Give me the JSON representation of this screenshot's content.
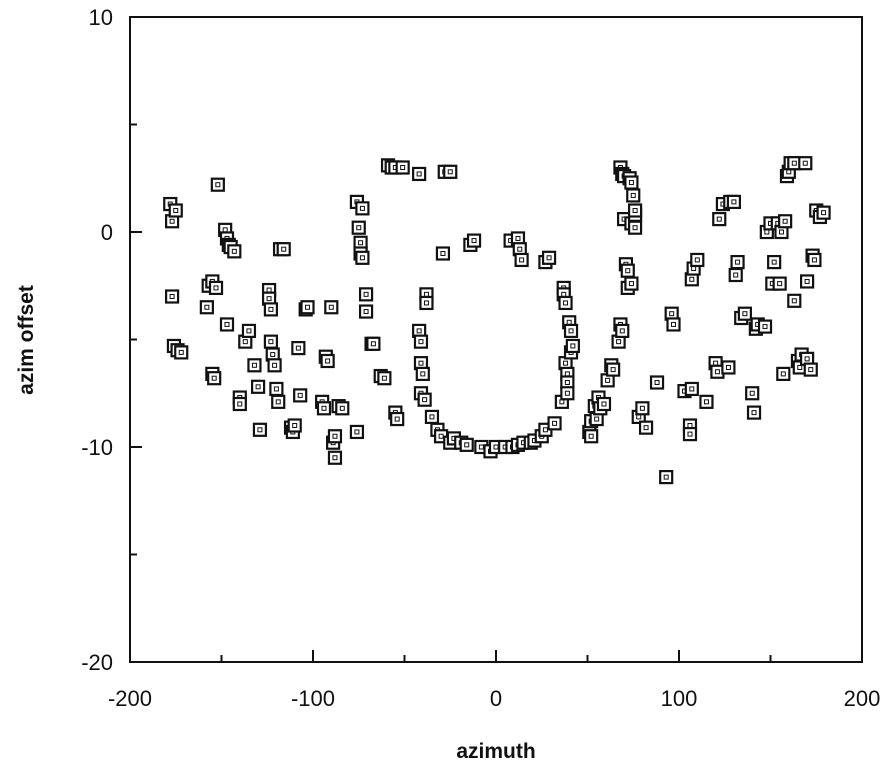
{
  "chart_data": {
    "type": "scatter",
    "xlabel": "azimuth",
    "ylabel": "azim offset",
    "xlim": [
      -200,
      200
    ],
    "ylim": [
      -20,
      10
    ],
    "x_ticks": [
      -200,
      -100,
      0,
      100,
      200
    ],
    "x_tick_labels": [
      "-200",
      "-100",
      "0",
      "100",
      "200"
    ],
    "y_ticks": [
      -20,
      -10,
      0,
      10
    ],
    "y_tick_labels": [
      "-20",
      "-10",
      "0",
      "10"
    ],
    "grid": false,
    "marker": "hollow-square",
    "points": [
      [
        -178,
        1.3
      ],
      [
        -177,
        0.5
      ],
      [
        -175,
        1.0
      ],
      [
        -177,
        -3.0
      ],
      [
        -176,
        -5.3
      ],
      [
        -174,
        -5.5
      ],
      [
        -172,
        -5.6
      ],
      [
        -158,
        -3.5
      ],
      [
        -157,
        -2.5
      ],
      [
        -155,
        -2.3
      ],
      [
        -153,
        -2.6
      ],
      [
        -152,
        2.2
      ],
      [
        -155,
        -6.6
      ],
      [
        -154,
        -6.8
      ],
      [
        -148,
        0.1
      ],
      [
        -147,
        -0.3
      ],
      [
        -146,
        -0.6
      ],
      [
        -145,
        -0.7
      ],
      [
        -143,
        -0.9
      ],
      [
        -147,
        -4.3
      ],
      [
        -140,
        -7.7
      ],
      [
        -140,
        -8.0
      ],
      [
        -137,
        -5.1
      ],
      [
        -135,
        -4.6
      ],
      [
        -132,
        -6.2
      ],
      [
        -130,
        -7.2
      ],
      [
        -129,
        -9.2
      ],
      [
        -124,
        -2.7
      ],
      [
        -124,
        -3.1
      ],
      [
        -123,
        -3.6
      ],
      [
        -123,
        -5.1
      ],
      [
        -122,
        -5.7
      ],
      [
        -121,
        -6.2
      ],
      [
        -120,
        -7.3
      ],
      [
        -119,
        -7.9
      ],
      [
        -118,
        -0.8
      ],
      [
        -116,
        -0.8
      ],
      [
        -112,
        -9.1
      ],
      [
        -111,
        -9.3
      ],
      [
        -110,
        -9.0
      ],
      [
        -108,
        -5.4
      ],
      [
        -107,
        -7.6
      ],
      [
        -104,
        -3.6
      ],
      [
        -103,
        -3.5
      ],
      [
        -95,
        -7.9
      ],
      [
        -94,
        -8.2
      ],
      [
        -93,
        -5.8
      ],
      [
        -92,
        -6.0
      ],
      [
        -90,
        -3.5
      ],
      [
        -89,
        -9.8
      ],
      [
        -88,
        -10.5
      ],
      [
        -88,
        -9.5
      ],
      [
        -86,
        -8.1
      ],
      [
        -84,
        -8.2
      ],
      [
        -76,
        1.4
      ],
      [
        -75,
        0.2
      ],
      [
        -74,
        -0.5
      ],
      [
        -74,
        -1.0
      ],
      [
        -73,
        -1.2
      ],
      [
        -73,
        1.1
      ],
      [
        -76,
        -9.3
      ],
      [
        -71,
        -2.9
      ],
      [
        -71,
        -3.7
      ],
      [
        -68,
        -5.2
      ],
      [
        -67,
        -5.2
      ],
      [
        -63,
        -6.7
      ],
      [
        -61,
        -6.8
      ],
      [
        -59,
        3.1
      ],
      [
        -57,
        3.0
      ],
      [
        -55,
        3.0
      ],
      [
        -51,
        3.0
      ],
      [
        -55,
        -8.4
      ],
      [
        -54,
        -8.7
      ],
      [
        -42,
        2.7
      ],
      [
        -42,
        -4.6
      ],
      [
        -41,
        -5.1
      ],
      [
        -41,
        -6.1
      ],
      [
        -40,
        -6.6
      ],
      [
        -41,
        -7.5
      ],
      [
        -39,
        -7.8
      ],
      [
        -38,
        -2.9
      ],
      [
        -38,
        -3.3
      ],
      [
        -35,
        -8.6
      ],
      [
        -32,
        -9.2
      ],
      [
        -30,
        -9.5
      ],
      [
        -29,
        -1.0
      ],
      [
        -28,
        2.8
      ],
      [
        -25,
        2.8
      ],
      [
        -25,
        -9.8
      ],
      [
        -23,
        -9.6
      ],
      [
        -19,
        -9.8
      ],
      [
        -16,
        -9.9
      ],
      [
        -14,
        -0.6
      ],
      [
        -12,
        -0.4
      ],
      [
        -8,
        -10.0
      ],
      [
        -3,
        -10.2
      ],
      [
        0,
        -10.0
      ],
      [
        5,
        -10.0
      ],
      [
        8,
        -0.4
      ],
      [
        9,
        -10.0
      ],
      [
        12,
        -0.3
      ],
      [
        12,
        -9.9
      ],
      [
        13,
        -0.8
      ],
      [
        14,
        -1.3
      ],
      [
        15,
        -9.8
      ],
      [
        19,
        -9.8
      ],
      [
        21,
        -9.7
      ],
      [
        25,
        -9.5
      ],
      [
        27,
        -9.2
      ],
      [
        27,
        -1.4
      ],
      [
        29,
        -1.2
      ],
      [
        32,
        -8.9
      ],
      [
        36,
        -7.9
      ],
      [
        37,
        -2.6
      ],
      [
        37,
        -2.9
      ],
      [
        38,
        -3.3
      ],
      [
        38,
        -6.1
      ],
      [
        39,
        -6.6
      ],
      [
        39,
        -7.0
      ],
      [
        39,
        -7.5
      ],
      [
        40,
        -4.2
      ],
      [
        41,
        -4.6
      ],
      [
        41,
        -5.6
      ],
      [
        42,
        -5.3
      ],
      [
        51,
        -9.3
      ],
      [
        52,
        -8.8
      ],
      [
        52,
        -9.5
      ],
      [
        54,
        -8.1
      ],
      [
        55,
        -8.7
      ],
      [
        56,
        -7.7
      ],
      [
        57,
        -8.2
      ],
      [
        59,
        -8.0
      ],
      [
        61,
        -6.9
      ],
      [
        63,
        -6.2
      ],
      [
        64,
        -6.4
      ],
      [
        67,
        -5.1
      ],
      [
        68,
        3.0
      ],
      [
        68,
        -4.3
      ],
      [
        69,
        -4.6
      ],
      [
        69,
        2.7
      ],
      [
        70,
        0.6
      ],
      [
        70,
        2.6
      ],
      [
        71,
        -1.5
      ],
      [
        72,
        -1.8
      ],
      [
        72,
        -2.6
      ],
      [
        73,
        2.5
      ],
      [
        74,
        2.3
      ],
      [
        74,
        0.4
      ],
      [
        74,
        -2.4
      ],
      [
        75,
        1.7
      ],
      [
        76,
        0.8
      ],
      [
        76,
        0.2
      ],
      [
        76,
        1.0
      ],
      [
        78,
        -8.6
      ],
      [
        80,
        -8.2
      ],
      [
        82,
        -9.1
      ],
      [
        88,
        -7.0
      ],
      [
        93,
        -11.4
      ],
      [
        96,
        -3.8
      ],
      [
        97,
        -4.3
      ],
      [
        103,
        -7.4
      ],
      [
        106,
        -9.0
      ],
      [
        106,
        -9.4
      ],
      [
        107,
        -7.3
      ],
      [
        107,
        -2.2
      ],
      [
        108,
        -1.7
      ],
      [
        110,
        -1.3
      ],
      [
        115,
        -7.9
      ],
      [
        120,
        -6.1
      ],
      [
        121,
        -6.5
      ],
      [
        122,
        0.6
      ],
      [
        124,
        1.3
      ],
      [
        127,
        -6.3
      ],
      [
        128,
        1.4
      ],
      [
        130,
        1.4
      ],
      [
        131,
        -2.0
      ],
      [
        132,
        -1.4
      ],
      [
        134,
        -4.0
      ],
      [
        136,
        -3.8
      ],
      [
        140,
        -7.5
      ],
      [
        141,
        -8.4
      ],
      [
        142,
        -4.5
      ],
      [
        143,
        -4.3
      ],
      [
        147,
        -4.4
      ],
      [
        148,
        0.0
      ],
      [
        150,
        0.4
      ],
      [
        151,
        -2.4
      ],
      [
        152,
        -1.4
      ],
      [
        154,
        0.4
      ],
      [
        155,
        -2.4
      ],
      [
        156,
        0.0
      ],
      [
        157,
        -6.6
      ],
      [
        158,
        0.5
      ],
      [
        159,
        2.6
      ],
      [
        160,
        2.8
      ],
      [
        161,
        3.2
      ],
      [
        163,
        3.2
      ],
      [
        163,
        -3.2
      ],
      [
        165,
        -6.0
      ],
      [
        166,
        -6.3
      ],
      [
        167,
        -5.7
      ],
      [
        169,
        3.2
      ],
      [
        170,
        -2.3
      ],
      [
        170,
        -5.9
      ],
      [
        172,
        -6.4
      ],
      [
        173,
        -1.1
      ],
      [
        174,
        -1.3
      ],
      [
        175,
        1.0
      ],
      [
        177,
        0.7
      ],
      [
        179,
        0.9
      ]
    ]
  }
}
